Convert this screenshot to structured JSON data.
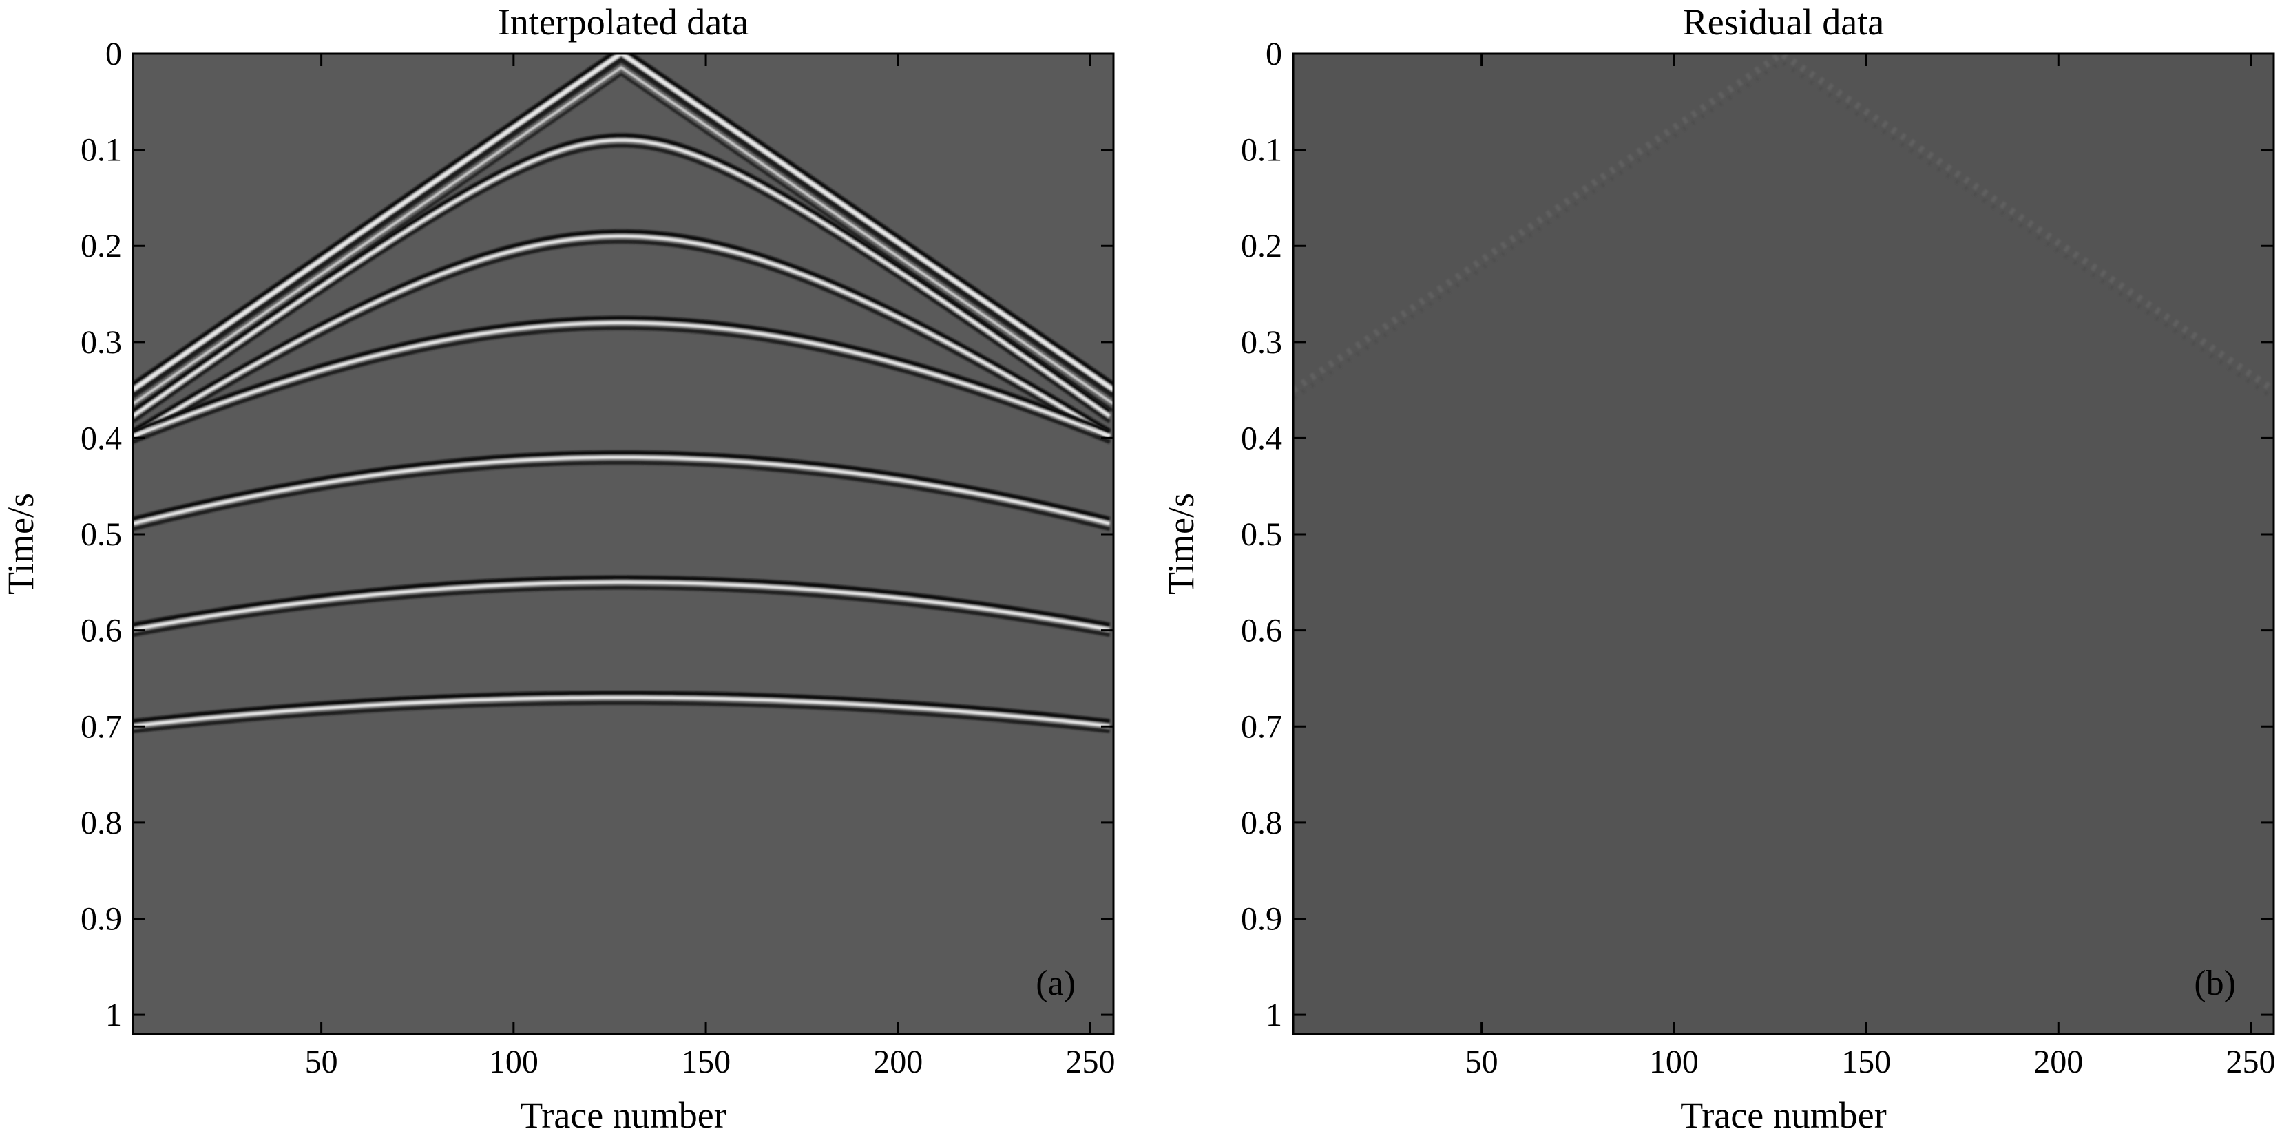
{
  "chart_data": [
    {
      "type": "heatmap",
      "title": "Interpolated data",
      "xlabel": "Trace number",
      "ylabel": "Time/s",
      "xlim": [
        1,
        256
      ],
      "ylim": [
        0,
        1.02
      ],
      "y_reversed": true,
      "x_ticks": [
        50,
        100,
        150,
        200,
        250
      ],
      "y_ticks": [
        0,
        0.1,
        0.2,
        0.3,
        0.4,
        0.5,
        0.6,
        0.7,
        0.8,
        0.9,
        1
      ],
      "x_tick_labels": [
        "50",
        "100",
        "150",
        "200",
        "250"
      ],
      "y_tick_labels": [
        "0",
        "0.1",
        "0.2",
        "0.3",
        "0.4",
        "0.5",
        "0.6",
        "0.7",
        "0.8",
        "0.9",
        "1"
      ],
      "panel_tag": "(a)",
      "colormap": "gray",
      "background_color": "#5a5a5a",
      "events": [
        {
          "kind": "direct-wave",
          "apex_trace": 128,
          "apex_time": 0.0,
          "edge_time": 0.35
        },
        {
          "kind": "hyperbola",
          "apex_trace": 128,
          "apex_time": 0.09,
          "edge_time": 0.38
        },
        {
          "kind": "hyperbola",
          "apex_trace": 128,
          "apex_time": 0.19,
          "edge_time": 0.4
        },
        {
          "kind": "hyperbola",
          "apex_trace": 128,
          "apex_time": 0.28,
          "edge_time": 0.4
        },
        {
          "kind": "hyperbola",
          "apex_trace": 128,
          "apex_time": 0.42,
          "edge_time": 0.49
        },
        {
          "kind": "hyperbola",
          "apex_trace": 128,
          "apex_time": 0.55,
          "edge_time": 0.6
        },
        {
          "kind": "hyperbola",
          "apex_trace": 128,
          "apex_time": 0.67,
          "edge_time": 0.7
        }
      ]
    },
    {
      "type": "heatmap",
      "title": "Residual data",
      "xlabel": "Trace number",
      "ylabel": "Time/s",
      "xlim": [
        1,
        256
      ],
      "ylim": [
        0,
        1.02
      ],
      "y_reversed": true,
      "x_ticks": [
        50,
        100,
        150,
        200,
        250
      ],
      "y_ticks": [
        0,
        0.1,
        0.2,
        0.3,
        0.4,
        0.5,
        0.6,
        0.7,
        0.8,
        0.9,
        1
      ],
      "x_tick_labels": [
        "50",
        "100",
        "150",
        "200",
        "250"
      ],
      "y_tick_labels": [
        "0",
        "0.1",
        "0.2",
        "0.3",
        "0.4",
        "0.5",
        "0.6",
        "0.7",
        "0.8",
        "0.9",
        "1"
      ],
      "panel_tag": "(b)",
      "colormap": "gray",
      "background_color": "#545454",
      "events": [
        {
          "kind": "direct-wave",
          "apex_trace": 128,
          "apex_time": 0.0,
          "edge_time": 0.35
        }
      ]
    }
  ]
}
